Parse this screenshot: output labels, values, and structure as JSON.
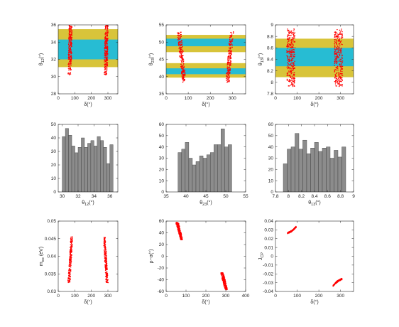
{
  "figure": {
    "background": "#ffffff",
    "colors": {
      "scatter": "#ff0000",
      "band_3sigma": "#d8c43a",
      "band_1sigma": "#27bcd3",
      "bar_fill": "#8c8c8c",
      "bar_edge": "#3a3a3a",
      "axis": "#262626"
    }
  },
  "chart_data": [
    {
      "id": "p11",
      "type": "scatter",
      "xlabel": "δ(°)",
      "ylabel": "θ₁₂(°)",
      "xlim": [
        0,
        360
      ],
      "ylim": [
        28,
        36
      ],
      "xticks": [
        0,
        100,
        200,
        300
      ],
      "yticks": [
        28,
        30,
        32,
        34,
        36
      ],
      "bands": [
        {
          "y0": 31.1,
          "y1": 35.5,
          "color": "#d8c43a"
        },
        {
          "y0": 32.0,
          "y1": 34.3,
          "color": "#27bcd3"
        }
      ],
      "clusters": [
        {
          "x_bottom": [
            59,
            79
          ],
          "x_top": [
            66,
            86
          ],
          "y": [
            30.2,
            36.6
          ],
          "n": 260
        },
        {
          "x_bottom": [
            277,
            297
          ],
          "x_top": [
            284,
            302
          ],
          "y": [
            30.2,
            36.6
          ],
          "n": 260
        }
      ]
    },
    {
      "id": "p12",
      "type": "scatter",
      "xlabel": "δ(°)",
      "ylabel": "θ₂₃(°)",
      "xlim": [
        0,
        360
      ],
      "ylim": [
        35,
        55
      ],
      "xticks": [
        0,
        100,
        200,
        300
      ],
      "yticks": [
        35,
        40,
        45,
        50,
        55
      ],
      "bands": [
        {
          "y0": 39.7,
          "y1": 43.9,
          "color": "#d8c43a"
        },
        {
          "y0": 47.1,
          "y1": 52.1,
          "color": "#d8c43a"
        },
        {
          "y0": 40.7,
          "y1": 42.4,
          "color": "#27bcd3"
        },
        {
          "y0": 48.8,
          "y1": 51.0,
          "color": "#27bcd3"
        }
      ],
      "clusters": [
        {
          "x_bottom": [
            74,
            90
          ],
          "x_top": [
            50,
            68
          ],
          "y": [
            38.3,
            53.0
          ],
          "n": 200
        },
        {
          "x_bottom": [
            270,
            286
          ],
          "x_top": [
            289,
            305
          ],
          "y": [
            38.3,
            53.0
          ],
          "n": 200
        }
      ]
    },
    {
      "id": "p13",
      "type": "scatter",
      "xlabel": "δ(°)",
      "ylabel": "θ₁₃(°)",
      "xlim": [
        0,
        360
      ],
      "ylim": [
        7.8,
        9.0
      ],
      "xticks": [
        0,
        100,
        200,
        300
      ],
      "yticks": [
        7.8,
        8.0,
        8.2,
        8.4,
        8.6,
        8.8,
        9.0
      ],
      "bands": [
        {
          "y0": 8.09,
          "y1": 8.76,
          "color": "#d8c43a"
        },
        {
          "y0": 8.28,
          "y1": 8.6,
          "color": "#27bcd3"
        }
      ],
      "clusters": [
        {
          "x_bottom": [
            52,
            90
          ],
          "x_top": [
            52,
            90
          ],
          "y": [
            7.93,
            8.93
          ],
          "n": 300
        },
        {
          "x_bottom": [
            272,
            310
          ],
          "x_top": [
            272,
            310
          ],
          "y": [
            7.93,
            8.93
          ],
          "n": 300
        }
      ]
    },
    {
      "id": "p21",
      "type": "bar",
      "xlabel": "θ₁₂(°)",
      "ylabel": "",
      "xlim": [
        29.5,
        37
      ],
      "ylim": [
        0,
        50
      ],
      "xticks": [
        30,
        32,
        34,
        36
      ],
      "yticks": [
        0,
        10,
        20,
        30,
        40,
        50
      ],
      "bin_edges": [
        30.0,
        30.4,
        30.8,
        31.2,
        31.6,
        32.0,
        32.4,
        32.8,
        33.2,
        33.6,
        34.0,
        34.4,
        34.8,
        35.2,
        35.6,
        36.0,
        36.4
      ],
      "values": [
        41,
        47,
        42,
        34,
        29,
        33,
        40,
        33,
        36,
        38,
        34,
        41,
        38,
        33,
        21,
        35
      ]
    },
    {
      "id": "p22",
      "type": "bar",
      "xlabel": "θ₂₃(°)",
      "ylabel": "",
      "xlim": [
        35,
        55
      ],
      "ylim": [
        0,
        60
      ],
      "xticks": [
        35,
        40,
        45,
        50,
        55
      ],
      "yticks": [
        0,
        10,
        20,
        30,
        40,
        50,
        60
      ],
      "bin_edges": [
        38.0,
        38.9,
        39.8,
        40.7,
        41.6,
        42.5,
        43.4,
        44.3,
        45.2,
        46.1,
        47.0,
        47.9,
        48.8,
        49.7,
        50.6,
        51.5,
        52.4
      ],
      "values": [
        35,
        38,
        44,
        30,
        24,
        27,
        32,
        30,
        33,
        35,
        42,
        42,
        56,
        40,
        42,
        0
      ]
    },
    {
      "id": "p23",
      "type": "bar",
      "xlabel": "θ₁₃(°)",
      "ylabel": "",
      "xlim": [
        7.8,
        9.0
      ],
      "ylim": [
        0,
        60
      ],
      "xticks": [
        7.8,
        8.0,
        8.2,
        8.4,
        8.6,
        8.8,
        9.0
      ],
      "yticks": [
        0,
        10,
        20,
        30,
        40,
        50,
        60
      ],
      "bin_edges": [
        7.92,
        7.98,
        8.04,
        8.1,
        8.16,
        8.22,
        8.28,
        8.34,
        8.4,
        8.46,
        8.52,
        8.58,
        8.64,
        8.7,
        8.76,
        8.82,
        8.88,
        8.94
      ],
      "values": [
        25,
        38,
        40,
        52,
        38,
        46,
        34,
        39,
        44,
        36,
        39,
        40,
        30,
        37,
        31,
        40,
        0
      ]
    },
    {
      "id": "p31",
      "type": "scatter",
      "xlabel": "δ(°)",
      "ylabel": "m_ee (eV)",
      "xlim": [
        0,
        360
      ],
      "ylim": [
        0.03,
        0.05
      ],
      "xticks": [
        0,
        100,
        200,
        300
      ],
      "yticks": [
        0.03,
        0.035,
        0.04,
        0.045,
        0.05
      ],
      "bands": [],
      "clusters": [
        {
          "x_bottom": [
            58,
            72
          ],
          "x_top": [
            76,
            88
          ],
          "y": [
            0.0325,
            0.0455
          ],
          "n": 220
        },
        {
          "x_bottom": [
            288,
            302
          ],
          "x_top": [
            272,
            284
          ],
          "y": [
            0.0325,
            0.0455
          ],
          "n": 220
        }
      ]
    },
    {
      "id": "p32",
      "type": "scatter",
      "xlabel": "δ(°)",
      "ylabel": "ρ−σ(°)",
      "xlim": [
        0,
        400
      ],
      "ylim": [
        -60,
        60
      ],
      "xticks": [
        0,
        100,
        200,
        300,
        400
      ],
      "yticks": [
        -60,
        -40,
        -20,
        0,
        20,
        40,
        60
      ],
      "bands": [],
      "clusters": [
        {
          "x_bottom": [
            72,
            84
          ],
          "x_top": [
            48,
            62
          ],
          "y": [
            28,
            58
          ],
          "n": 220
        },
        {
          "x_bottom": [
            296,
            310
          ],
          "x_top": [
            274,
            288
          ],
          "y": [
            -58,
            -28
          ],
          "n": 220
        }
      ]
    },
    {
      "id": "p33",
      "type": "scatter",
      "xlabel": "δ(°)",
      "ylabel": "J_CP",
      "xlim": [
        0,
        360
      ],
      "ylim": [
        -0.04,
        0.04
      ],
      "xticks": [
        0,
        100,
        200,
        300
      ],
      "yticks": [
        -0.04,
        -0.03,
        -0.02,
        -0.01,
        0,
        0.01,
        0.02,
        0.03,
        0.04
      ],
      "bands": [],
      "arcs": [
        {
          "x0": 55,
          "y0": 0.0265,
          "x1": 95,
          "y1": 0.0335,
          "thick": 0.0022,
          "n": 220
        },
        {
          "x0": 266,
          "y0": -0.0335,
          "x1": 306,
          "y1": -0.026,
          "thick": 0.0022,
          "n": 220
        }
      ]
    }
  ]
}
